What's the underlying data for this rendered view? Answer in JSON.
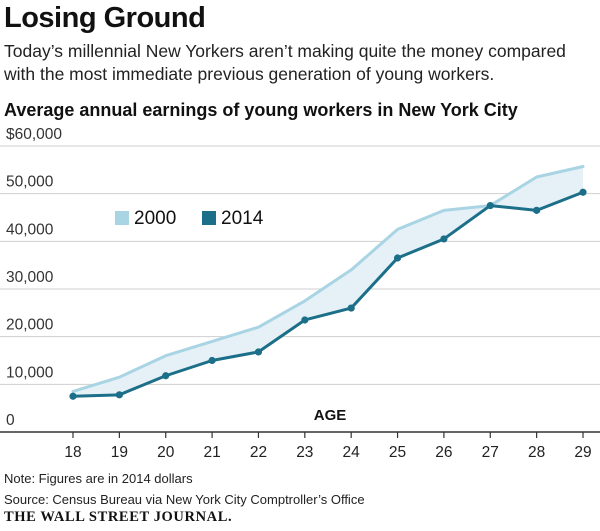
{
  "title": "Losing Ground",
  "subtitle": "Today’s millennial New Yorkers aren’t making quite the money compared with the most immediate previous generation of young workers.",
  "chart_data": {
    "type": "line",
    "title": "Average annual earnings of young workers in New York City",
    "xlabel": "AGE",
    "ylabel": "",
    "x": [
      18,
      19,
      20,
      21,
      22,
      23,
      24,
      25,
      26,
      27,
      28,
      29
    ],
    "ylim": [
      0,
      60000
    ],
    "yticks": [
      0,
      10000,
      20000,
      30000,
      40000,
      50000,
      60000
    ],
    "ytick_labels": [
      "0",
      "10,000",
      "20,000",
      "30,000",
      "40,000",
      "50,000",
      "$60,000"
    ],
    "grid": true,
    "legend_position": "upper-left",
    "shaded_between_series": true,
    "series": [
      {
        "name": "2000",
        "color": "#a9d4e3",
        "markers": false,
        "values": [
          8500,
          11500,
          16000,
          19000,
          22000,
          27500,
          34000,
          42500,
          46500,
          47500,
          53500,
          55700
        ]
      },
      {
        "name": "2014",
        "color": "#1c6f88",
        "markers": true,
        "values": [
          7500,
          7800,
          11800,
          15000,
          16800,
          23500,
          26000,
          36500,
          40500,
          47500,
          46500,
          50300
        ]
      }
    ],
    "colors": {
      "fill": "#e5f1f7",
      "grid": "#cfcfcf",
      "axis": "#333333"
    }
  },
  "notes": {
    "note": "Note: Figures are in 2014 dollars",
    "source": "Source: Census Bureau via New York City Comptroller’s Office"
  },
  "brand": "THE WALL STREET JOURNAL."
}
